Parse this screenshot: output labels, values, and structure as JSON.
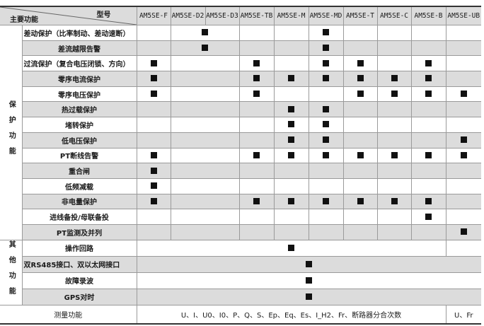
{
  "header": {
    "model_label": "型号",
    "function_label": "主要功能"
  },
  "models": [
    "AM5SE-F",
    "AM5SE-D2",
    "AM5SE-D3",
    "AM5SE-TB",
    "AM5SE-M",
    "AM5SE-MD",
    "AM5SE-T",
    "AM5SE-C",
    "AM5SE-B",
    "AM5SE-UB"
  ],
  "groups": [
    {
      "label": "保护功能",
      "chars": [
        "保",
        "护",
        "功",
        "能"
      ]
    },
    {
      "label": "其他功能",
      "chars": [
        "其",
        "他",
        "功",
        "能"
      ]
    }
  ],
  "protection_rows": [
    {
      "label": "差动保护（比率制动、差动速断）",
      "marks": [
        "AM5SE-D2/D3",
        "AM5SE-MD"
      ]
    },
    {
      "label": "差流越限告警",
      "marks": [
        "AM5SE-D2/D3",
        "AM5SE-MD"
      ]
    },
    {
      "label": "过流保护（复合电压闭锁、方向）",
      "marks": [
        "AM5SE-F",
        "AM5SE-TB",
        "AM5SE-MD",
        "AM5SE-T",
        "AM5SE-B"
      ]
    },
    {
      "label": "零序电流保护",
      "marks": [
        "AM5SE-F",
        "AM5SE-TB",
        "AM5SE-M",
        "AM5SE-MD",
        "AM5SE-T",
        "AM5SE-C",
        "AM5SE-B"
      ]
    },
    {
      "label": "零序电压保护",
      "marks": [
        "AM5SE-F",
        "AM5SE-TB",
        "AM5SE-T",
        "AM5SE-C",
        "AM5SE-B",
        "AM5SE-UB"
      ]
    },
    {
      "label": "热过载保护",
      "marks": [
        "AM5SE-M",
        "AM5SE-MD"
      ]
    },
    {
      "label": "堵转保护",
      "marks": [
        "AM5SE-M",
        "AM5SE-MD"
      ]
    },
    {
      "label": "低电压保护",
      "marks": [
        "AM5SE-M",
        "AM5SE-MD",
        "AM5SE-UB"
      ]
    },
    {
      "label": "PT断线告警",
      "marks": [
        "AM5SE-F",
        "AM5SE-TB",
        "AM5SE-M",
        "AM5SE-MD",
        "AM5SE-T",
        "AM5SE-C",
        "AM5SE-B",
        "AM5SE-UB"
      ]
    },
    {
      "label": "重合闸",
      "marks": [
        "AM5SE-F"
      ]
    },
    {
      "label": "低频减载",
      "marks": [
        "AM5SE-F"
      ]
    },
    {
      "label": "非电量保护",
      "marks": [
        "AM5SE-F",
        "AM5SE-TB",
        "AM5SE-M",
        "AM5SE-MD",
        "AM5SE-T",
        "AM5SE-C",
        "AM5SE-B"
      ]
    },
    {
      "label": "进线备投/母联备投",
      "marks": [
        "AM5SE-B"
      ]
    },
    {
      "label": "PT监测及并列",
      "marks": [
        "AM5SE-UB"
      ]
    }
  ],
  "other_rows": [
    {
      "label": "操作回路",
      "scope": "AM5SE-F ~ AM5SE-B",
      "supported": true,
      "ub": false
    },
    {
      "label": "双RS485接口、双以太网接口",
      "scope": "all",
      "supported": true
    },
    {
      "label": "故障录波",
      "scope": "all",
      "supported": true
    },
    {
      "label": "GPS对时",
      "scope": "all",
      "supported": true
    }
  ],
  "measurement": {
    "label": "测量功能",
    "main_value": "U、I、U0、I0、P、Q、S、Ep、Eq、Es、I_H2、Fr、断路器分合次数",
    "ub_value": "U、Fr"
  },
  "colors": {
    "row_alt": "#dcdcdc",
    "mark": "#111111",
    "grid": "#9a9a9a"
  }
}
